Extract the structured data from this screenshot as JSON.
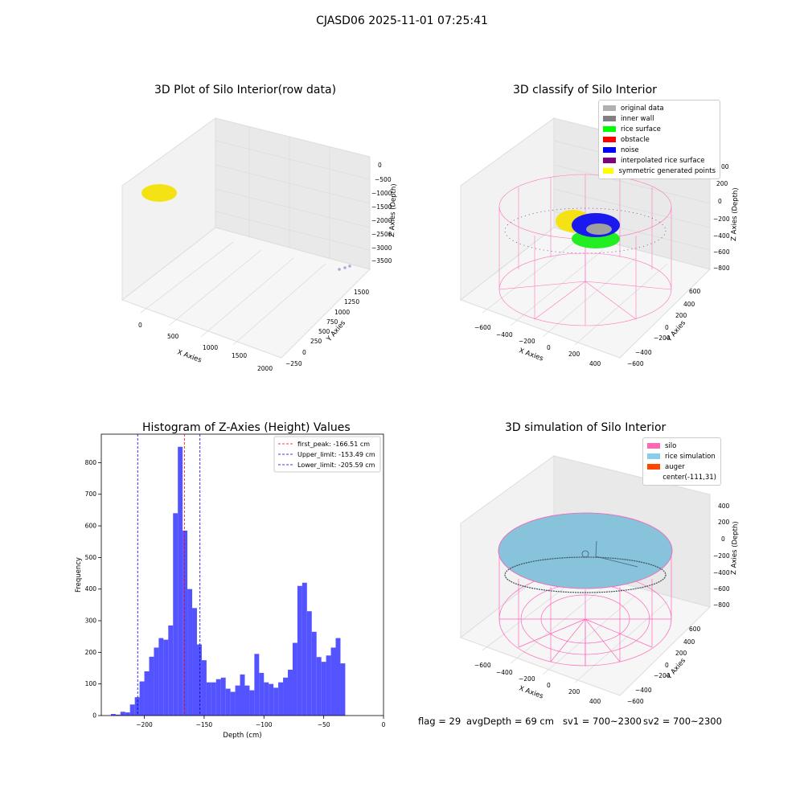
{
  "figure": {
    "suptitle": "CJASD06 2025-11-01 07:25:41"
  },
  "panels": {
    "raw": {
      "title": "3D Plot of Silo Interior(row data)",
      "xlabel": "X Axies",
      "ylabel": "Y Axies",
      "zlabel": "Z Axies (Depth)",
      "xticks": [
        "0",
        "500",
        "1000",
        "1500",
        "2000"
      ],
      "yticks": [
        "−250",
        "0",
        "250",
        "500",
        "750",
        "1000",
        "1250",
        "1500"
      ],
      "zticks": [
        "0",
        "−500",
        "−1000",
        "−1500",
        "−2000",
        "−2500",
        "−3000",
        "−3500"
      ]
    },
    "classify": {
      "title": "3D classify of Silo Interior",
      "xlabel": "X Axies",
      "ylabel": "Y Axies",
      "zlabel": "Z Axies (Depth)",
      "xticks": [
        "−600",
        "−400",
        "−200",
        "0",
        "200",
        "400"
      ],
      "yticks": [
        "−600",
        "−400",
        "−200",
        "0",
        "200",
        "400",
        "600"
      ],
      "zticks": [
        "200",
        "0",
        "−200",
        "−400",
        "−600",
        "−800"
      ],
      "zextra": "00",
      "legend": [
        {
          "label": "original data",
          "color": "#b0b0b0"
        },
        {
          "label": "inner wall",
          "color": "#808080"
        },
        {
          "label": "rice surface",
          "color": "#00ff00"
        },
        {
          "label": "obstacle",
          "color": "#ff0000"
        },
        {
          "label": "noise",
          "color": "#0000ff"
        },
        {
          "label": "interpolated rice surface",
          "color": "#800080"
        },
        {
          "label": "symmetric generated points",
          "color": "#ffff00"
        }
      ]
    },
    "simulation": {
      "title": "3D simulation of Silo Interior",
      "xlabel": "X Axies",
      "ylabel": "Y Axies",
      "zlabel": "Z Axies (Depth)",
      "xticks": [
        "−600",
        "−400",
        "−200",
        "0",
        "200",
        "400"
      ],
      "yticks": [
        "−600",
        "−400",
        "−200",
        "0",
        "200",
        "400",
        "600"
      ],
      "zticks": [
        "400",
        "200",
        "0",
        "−200",
        "−400",
        "−600",
        "−800"
      ],
      "legend": [
        {
          "label": "silo",
          "color": "#ff69b4"
        },
        {
          "label": "rice simulation",
          "color": "#87ceeb"
        },
        {
          "label": "auger",
          "color": "#ff4500"
        },
        {
          "label": "center(-111,31)",
          "color": "#ffffff"
        }
      ]
    }
  },
  "status": {
    "flag": "flag = 29",
    "avg_depth": "avgDepth = 69 cm",
    "sv1": "sv1 = 700~2300",
    "sv2": "sv2 = 700~2300"
  },
  "chart_data": {
    "type": "bar",
    "title": "Histogram of Z-Axies (Height) Values",
    "xlabel": "Depth (cm)",
    "ylabel": "Frequency",
    "xlim": [
      -236,
      0
    ],
    "ylim": [
      0,
      890
    ],
    "xticks": [
      -200,
      -150,
      -100,
      -50,
      0
    ],
    "yticks": [
      0,
      100,
      200,
      300,
      400,
      500,
      600,
      700,
      800
    ],
    "bin_width": 4.0,
    "bins_start": [
      -228,
      -224,
      -220,
      -216,
      -212,
      -208,
      -204,
      -200,
      -196,
      -192,
      -188,
      -184,
      -180,
      -176,
      -172,
      -168,
      -164,
      -160,
      -156,
      -152,
      -148,
      -144,
      -140,
      -136,
      -132,
      -128,
      -124,
      -120,
      -116,
      -112,
      -108,
      -104,
      -100,
      -96,
      -92,
      -88,
      -84,
      -80,
      -76,
      -72,
      -68,
      -64,
      -60,
      -56,
      -52,
      -48,
      -44,
      -40,
      -36,
      -32,
      -28,
      -24,
      -20,
      -16
    ],
    "values": [
      5,
      3,
      12,
      10,
      35,
      58,
      108,
      140,
      186,
      215,
      245,
      240,
      285,
      640,
      850,
      585,
      400,
      340,
      225,
      175,
      105,
      105,
      115,
      120,
      85,
      75,
      95,
      130,
      95,
      80,
      195,
      135,
      105,
      100,
      88,
      105,
      120,
      145,
      230,
      410,
      420,
      330,
      265,
      185,
      170,
      190,
      215,
      245,
      165,
      0,
      0,
      0,
      0,
      0
    ],
    "color": "#4a4aff",
    "lines": [
      {
        "label": "first_peak: -166.51 cm",
        "x": -166.51,
        "color": "#ff0000"
      },
      {
        "label": "Upper_limit: -153.49 cm",
        "x": -153.49,
        "color": "#0000cc"
      },
      {
        "label": "Lower_limit: -205.59 cm",
        "x": -205.59,
        "color": "#0000cc"
      }
    ]
  }
}
